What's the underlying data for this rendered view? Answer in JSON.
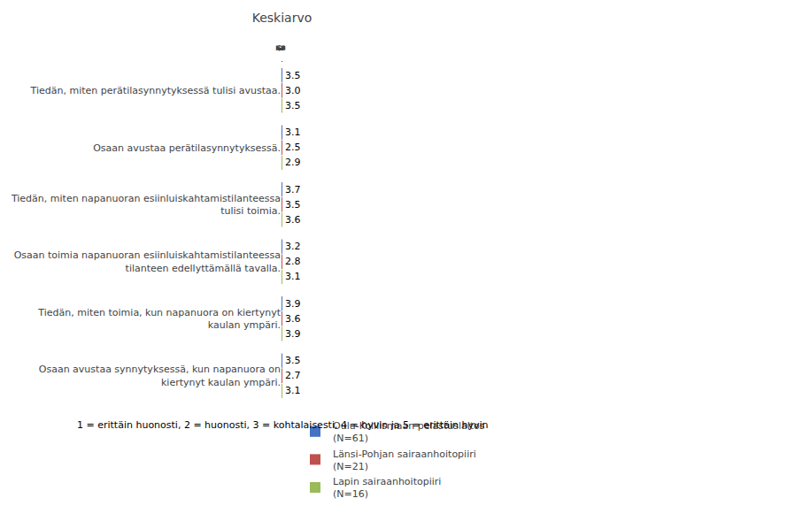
{
  "chart_data": {
    "type": "bar",
    "orientation": "horizontal",
    "xlabel": "Keskiarvo",
    "categories": [
      "Tiedän, miten perätilasynnytyksessä tulisi avustaa.",
      "Osaan avustaa perätilasynnytyksessä.",
      "Tiedän, miten napanuoran esiinluiskahtamistilanteessa\ntulisi toimia.",
      "Osaan toimia napanuoran esiinluiskahtamistilanteessa\ntilanteen edellyttämällä tavalla.",
      "Tiedän, miten toimia, kun napanuora on kiertynyt\nkaulan ympäri.",
      "Osaan avustaa synnytyksessä, kun napanuora on\nkiertynyt kaulan ympäri."
    ],
    "series": [
      {
        "name": "Oulu-Koillismaan pelastuslaitos\n(N=61)",
        "color": "#4472C4",
        "values": [
          3.5,
          3.1,
          3.7,
          3.2,
          3.9,
          3.5
        ],
        "value_labels": [
          "3.5",
          "3.1",
          "3.7",
          "3.2",
          "3.9",
          "3.5"
        ]
      },
      {
        "name": "Länsi-Pohjan sairaanhoitopiiri\n(N=21)",
        "color": "#C0504D",
        "values": [
          3.0,
          2.5,
          3.5,
          2.8,
          3.6,
          2.7
        ],
        "value_labels": [
          "3.0",
          "2.5",
          "3.5",
          "2.8",
          "3.6",
          "2.7"
        ]
      },
      {
        "name": "Lapin sairaanhoitopiiri\n(N=16)",
        "color": "#9BBB59",
        "values": [
          3.5,
          2.9,
          3.6,
          3.1,
          3.9,
          3.1
        ],
        "value_labels": [
          "3.5",
          "2.9",
          "3.6",
          "3.1",
          "3.9",
          "3.1"
        ]
      }
    ],
    "xlim": [
      1,
      5
    ],
    "xticks": [
      1,
      2,
      3,
      4,
      5
    ],
    "grid": true,
    "legend": "bottom",
    "data_labels": true,
    "annotations": [
      "1 = erittäin huonosti, 2 = huonosti, 3 = kohtalaisesti, 4 = hyvin ja 5 = erittäin hyvin"
    ]
  }
}
